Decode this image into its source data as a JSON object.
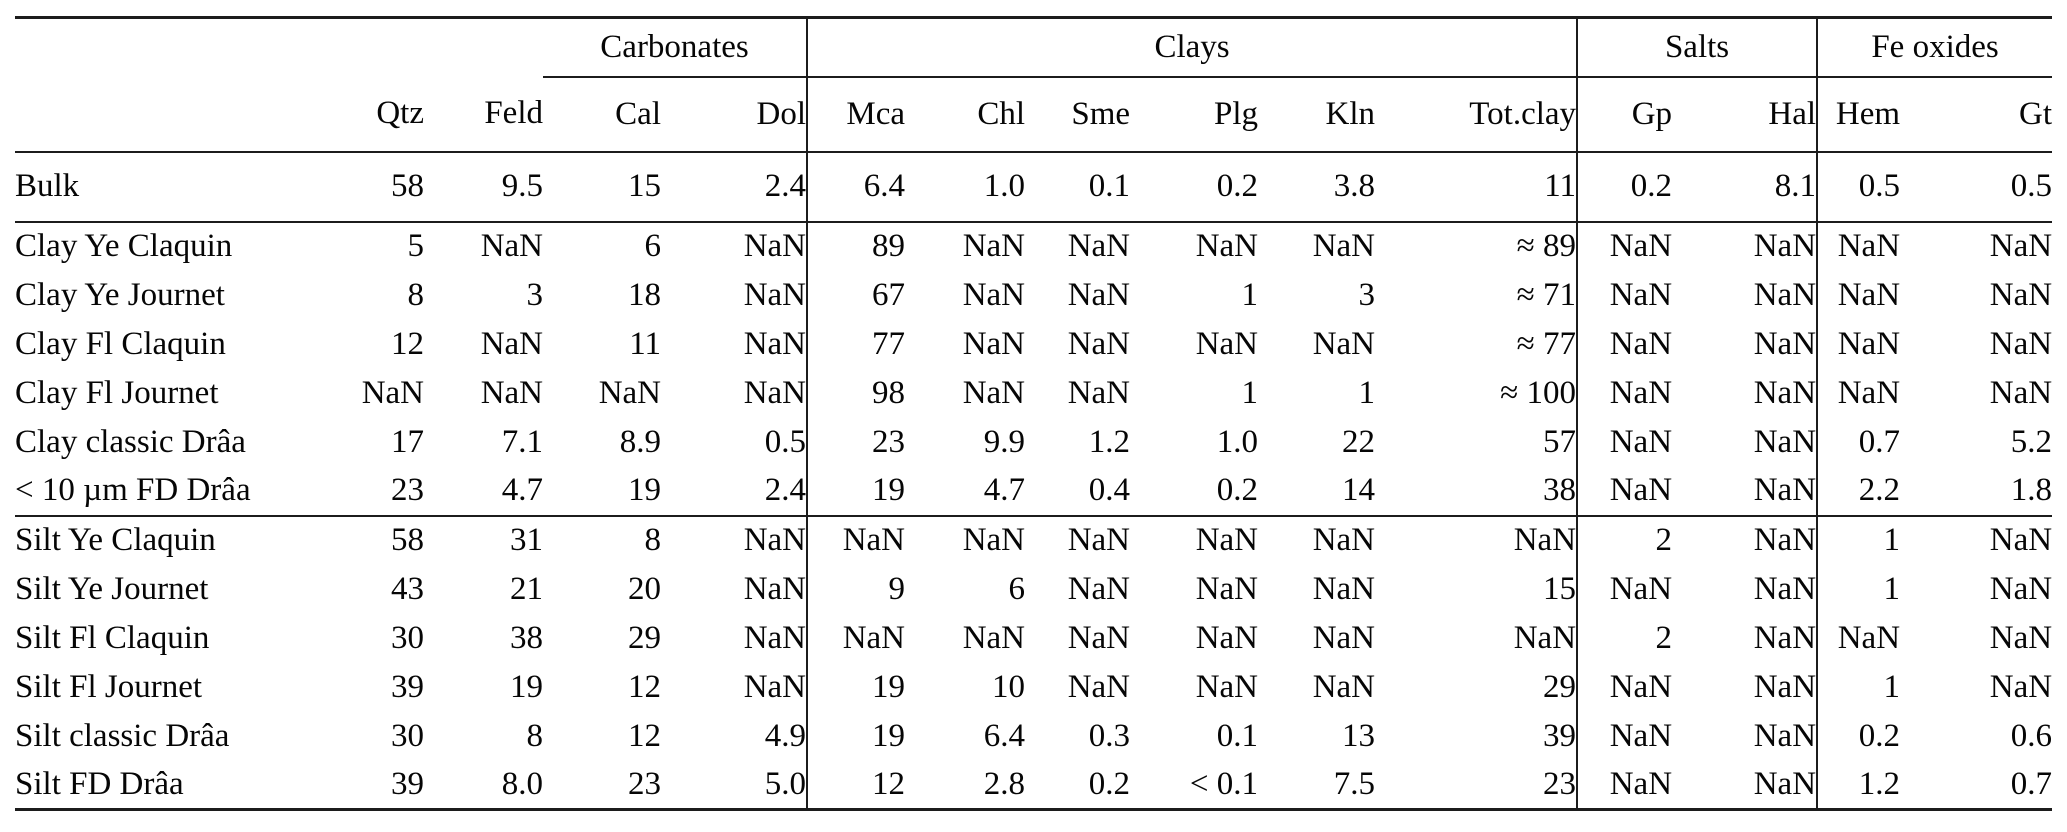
{
  "table": {
    "groups": [
      {
        "label": "Carbonates"
      },
      {
        "label": "Clays"
      },
      {
        "label": "Salts"
      },
      {
        "label": "Fe oxides"
      }
    ],
    "columns": [
      "Qtz",
      "Feld",
      "Cal",
      "Dol",
      "Mca",
      "Chl",
      "Sme",
      "Plg",
      "Kln",
      "Tot.clay",
      "Gp",
      "Hal",
      "Hem",
      "Gt"
    ],
    "sections": [
      {
        "name": "bulk",
        "rows": [
          {
            "label": "Bulk",
            "values": [
              "58",
              "9.5",
              "15",
              "2.4",
              "6.4",
              "1.0",
              "0.1",
              "0.2",
              "3.8",
              "11",
              "0.2",
              "8.1",
              "0.5",
              "0.5"
            ]
          }
        ]
      },
      {
        "name": "clay-fraction",
        "rows": [
          {
            "label": "Clay Ye Claquin",
            "values": [
              "5",
              "NaN",
              "6",
              "NaN",
              "89",
              "NaN",
              "NaN",
              "NaN",
              "NaN",
              "≈ 89",
              "NaN",
              "NaN",
              "NaN",
              "NaN"
            ]
          },
          {
            "label": "Clay Ye Journet",
            "values": [
              "8",
              "3",
              "18",
              "NaN",
              "67",
              "NaN",
              "NaN",
              "1",
              "3",
              "≈ 71",
              "NaN",
              "NaN",
              "NaN",
              "NaN"
            ]
          },
          {
            "label": "Clay Fl Claquin",
            "values": [
              "12",
              "NaN",
              "11",
              "NaN",
              "77",
              "NaN",
              "NaN",
              "NaN",
              "NaN",
              "≈ 77",
              "NaN",
              "NaN",
              "NaN",
              "NaN"
            ]
          },
          {
            "label": "Clay Fl Journet",
            "values": [
              "NaN",
              "NaN",
              "NaN",
              "NaN",
              "98",
              "NaN",
              "NaN",
              "1",
              "1",
              "≈ 100",
              "NaN",
              "NaN",
              "NaN",
              "NaN"
            ]
          },
          {
            "label": "Clay classic Drâa",
            "values": [
              "17",
              "7.1",
              "8.9",
              "0.5",
              "23",
              "9.9",
              "1.2",
              "1.0",
              "22",
              "57",
              "NaN",
              "NaN",
              "0.7",
              "5.2"
            ]
          },
          {
            "label": "< 10 µm FD Drâa",
            "values": [
              "23",
              "4.7",
              "19",
              "2.4",
              "19",
              "4.7",
              "0.4",
              "0.2",
              "14",
              "38",
              "NaN",
              "NaN",
              "2.2",
              "1.8"
            ]
          }
        ]
      },
      {
        "name": "silt-fraction",
        "rows": [
          {
            "label": "Silt Ye Claquin",
            "values": [
              "58",
              "31",
              "8",
              "NaN",
              "NaN",
              "NaN",
              "NaN",
              "NaN",
              "NaN",
              "NaN",
              "2",
              "NaN",
              "1",
              "NaN"
            ]
          },
          {
            "label": "Silt Ye Journet",
            "values": [
              "43",
              "21",
              "20",
              "NaN",
              "9",
              "6",
              "NaN",
              "NaN",
              "NaN",
              "15",
              "NaN",
              "NaN",
              "1",
              "NaN"
            ]
          },
          {
            "label": "Silt Fl Claquin",
            "values": [
              "30",
              "38",
              "29",
              "NaN",
              "NaN",
              "NaN",
              "NaN",
              "NaN",
              "NaN",
              "NaN",
              "2",
              "NaN",
              "NaN",
              "NaN"
            ]
          },
          {
            "label": "Silt Fl Journet",
            "values": [
              "39",
              "19",
              "12",
              "NaN",
              "19",
              "10",
              "NaN",
              "NaN",
              "NaN",
              "29",
              "NaN",
              "NaN",
              "1",
              "NaN"
            ]
          },
          {
            "label": "Silt classic Drâa",
            "values": [
              "30",
              "8",
              "12",
              "4.9",
              "19",
              "6.4",
              "0.3",
              "0.1",
              "13",
              "39",
              "NaN",
              "NaN",
              "0.2",
              "0.6"
            ]
          },
          {
            "label": "Silt FD Drâa",
            "values": [
              "39",
              "8.0",
              "23",
              "5.0",
              "12",
              "2.8",
              "0.2",
              "< 0.1",
              "7.5",
              "23",
              "NaN",
              "NaN",
              "1.2",
              "0.7"
            ]
          }
        ]
      }
    ]
  }
}
